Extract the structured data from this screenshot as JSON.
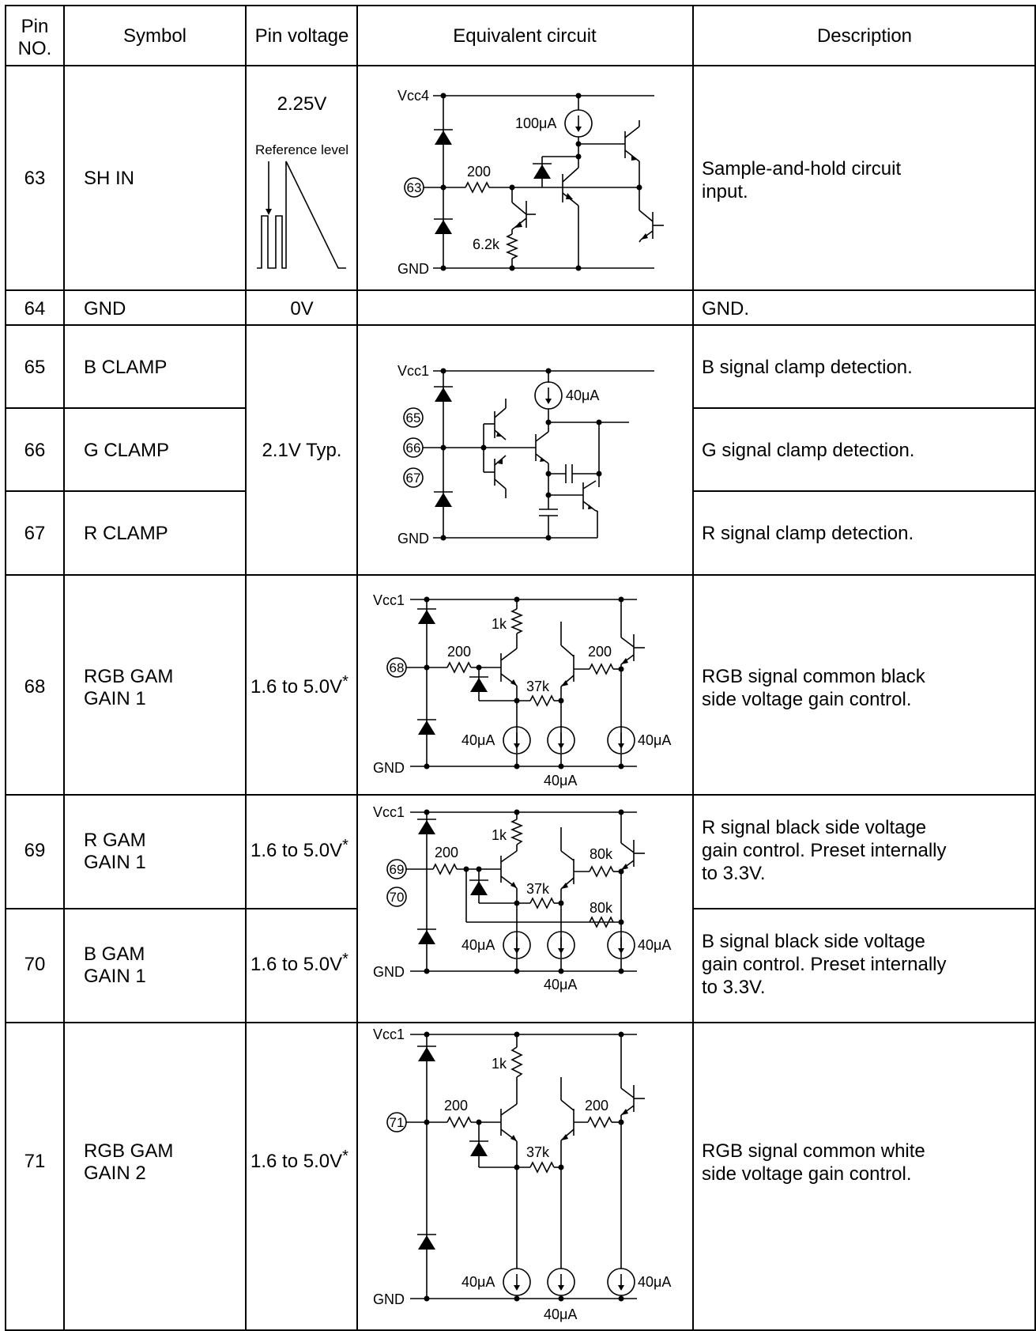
{
  "header": {
    "pin_no_line1": "Pin",
    "pin_no_line2": "NO.",
    "symbol": "Symbol",
    "pin_voltage": "Pin voltage",
    "equivalent_circuit": "Equivalent circuit",
    "description": "Description"
  },
  "rows": [
    {
      "pin": "63",
      "symbol_lines": [
        "SH IN"
      ],
      "voltage": "2.25V",
      "voltage_note": "Reference level",
      "description_lines": [
        "Sample-and-hold circuit",
        "input."
      ]
    },
    {
      "pin": "64",
      "symbol_lines": [
        "GND"
      ],
      "voltage": "0V",
      "description_lines": [
        "GND."
      ]
    },
    {
      "pin": "65",
      "symbol_lines": [
        "B CLAMP"
      ],
      "description_lines": [
        "B signal clamp detection."
      ]
    },
    {
      "pin": "66",
      "symbol_lines": [
        "G CLAMP"
      ],
      "voltage": "2.1V Typ.",
      "description_lines": [
        "G signal clamp detection."
      ]
    },
    {
      "pin": "67",
      "symbol_lines": [
        "R CLAMP"
      ],
      "description_lines": [
        "R signal clamp detection."
      ]
    },
    {
      "pin": "68",
      "symbol_lines": [
        "RGB GAM",
        "GAIN 1"
      ],
      "voltage": "1.6 to 5.0V",
      "voltage_mark": "*",
      "description_lines": [
        "RGB signal common black",
        "side voltage gain control."
      ]
    },
    {
      "pin": "69",
      "symbol_lines": [
        "R GAM",
        "GAIN 1"
      ],
      "voltage": "1.6 to 5.0V",
      "voltage_mark": "*",
      "description_lines": [
        "R signal black side voltage",
        "gain control. Preset internally",
        "to 3.3V."
      ]
    },
    {
      "pin": "70",
      "symbol_lines": [
        "B GAM",
        "GAIN 1"
      ],
      "voltage": "1.6 to 5.0V",
      "voltage_mark": "*",
      "description_lines": [
        "B signal black side voltage",
        "gain control. Preset internally",
        "to 3.3V."
      ]
    },
    {
      "pin": "71",
      "symbol_lines": [
        "RGB GAM",
        "GAIN 2"
      ],
      "voltage": "1.6 to 5.0V",
      "voltage_mark": "*",
      "description_lines": [
        "RGB signal common white",
        "side voltage gain control."
      ]
    }
  ],
  "circuits": {
    "c63": {
      "vcc": "Vcc4",
      "gnd": "GND",
      "pin": "63",
      "current": "100μA",
      "r1": "200",
      "r2": "6.2k"
    },
    "c65": {
      "vcc": "Vcc1",
      "gnd": "GND",
      "pins": [
        "65",
        "66",
        "67"
      ],
      "current": "40μA"
    },
    "c68": {
      "vcc": "Vcc1",
      "gnd": "GND",
      "pin": "68",
      "r_top": "1k",
      "r_in": "200",
      "r_mid": "37k",
      "r_out": "200",
      "i_left": "40μA",
      "i_mid": "40μA",
      "i_right": "40μA"
    },
    "c69": {
      "vcc": "Vcc1",
      "gnd": "GND",
      "pins": [
        "69",
        "70"
      ],
      "r_top": "1k",
      "r_in": "200",
      "r_mid": "37k",
      "r_out1": "80k",
      "r_out2": "80k",
      "i_left": "40μA",
      "i_mid": "40μA",
      "i_right": "40μA"
    },
    "c71": {
      "vcc": "Vcc1",
      "gnd": "GND",
      "pin": "71",
      "r_top": "1k",
      "r_in": "200",
      "r_mid": "37k",
      "r_out": "200",
      "i_left": "40μA",
      "i_mid": "40μA",
      "i_right": "40μA"
    }
  }
}
